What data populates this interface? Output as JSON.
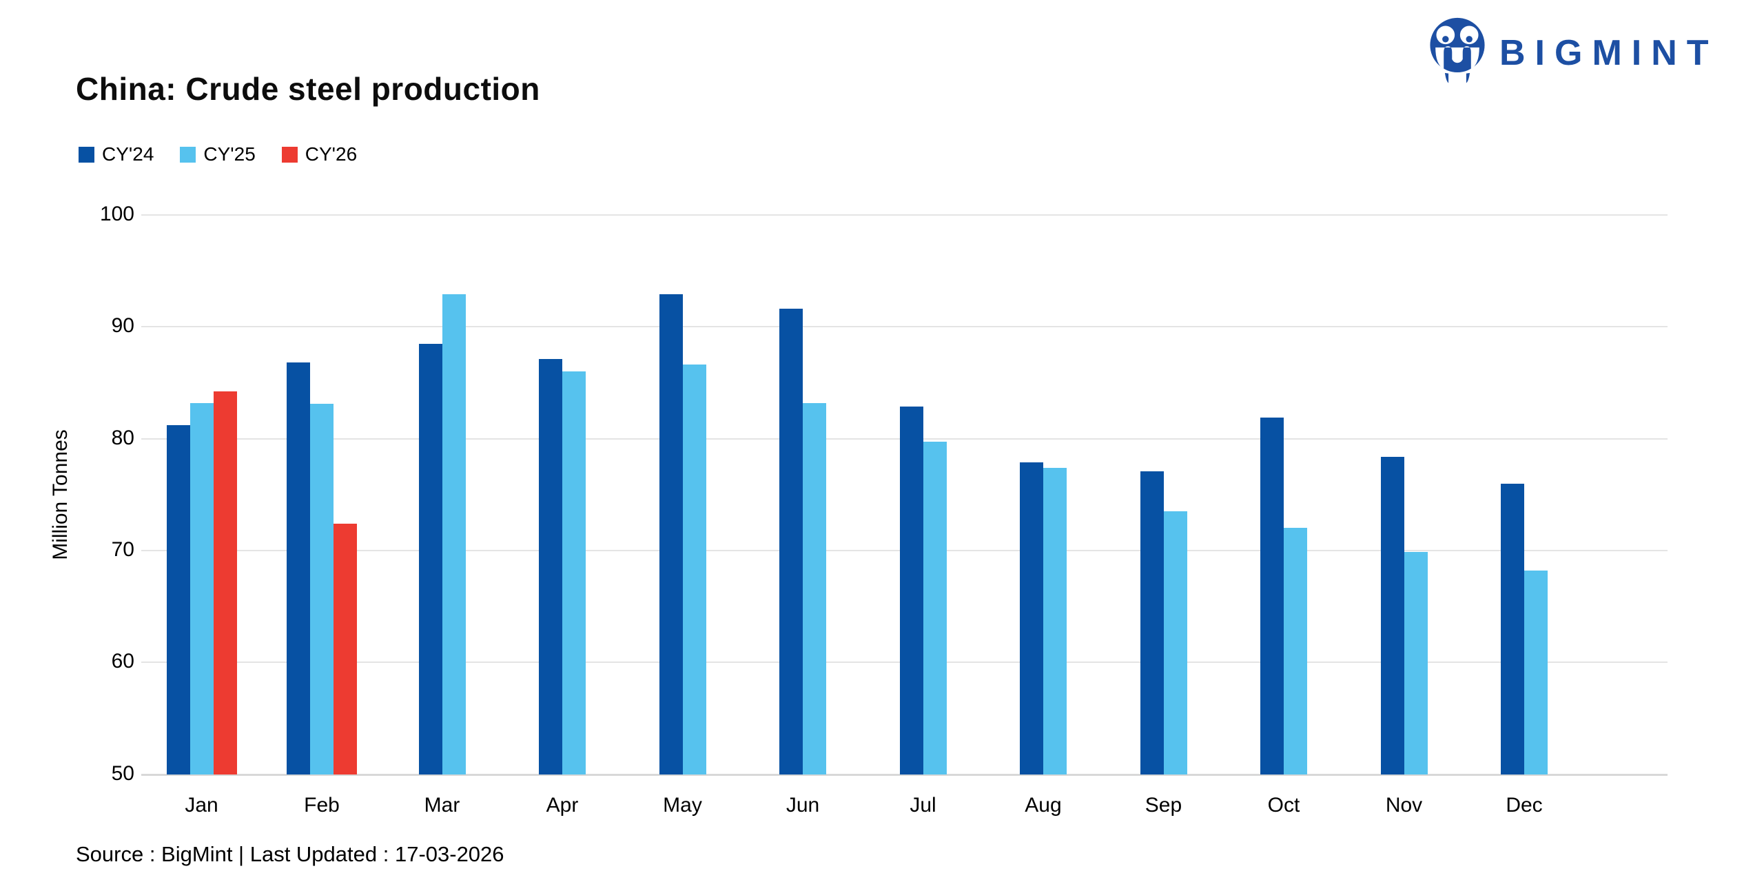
{
  "header": {
    "title": "China: Crude steel production",
    "brand": "BIGMINT",
    "brand_color": "#1d4fa3"
  },
  "y_axis": {
    "title": "Million Tonnes"
  },
  "footer": {
    "text": "Source : BigMint | Last Updated : 17-03-2026"
  },
  "colors": {
    "cy24": "#0751a3",
    "cy25": "#56c2ee",
    "cy26": "#ed3b31",
    "gridline": "#e4e4e4"
  },
  "chart_data": {
    "type": "bar",
    "title": "China: Crude steel production",
    "xlabel": "",
    "ylabel": "Million Tonnes",
    "ylim": [
      50,
      100
    ],
    "yticks": [
      50,
      60,
      70,
      80,
      90,
      100
    ],
    "grid": true,
    "legend_position": "top-left",
    "categories": [
      "Jan",
      "Feb",
      "Mar",
      "Apr",
      "May",
      "Jun",
      "Jul",
      "Aug",
      "Sep",
      "Oct",
      "Nov",
      "Dec"
    ],
    "series": [
      {
        "name": "CY'24",
        "color": "#0751a3",
        "values": [
          81.2,
          86.8,
          88.5,
          87.1,
          92.9,
          91.6,
          82.9,
          77.9,
          77.1,
          81.9,
          78.4,
          76.0
        ]
      },
      {
        "name": "CY'25",
        "color": "#56c2ee",
        "values": [
          83.2,
          83.1,
          92.9,
          86.0,
          86.6,
          83.2,
          79.7,
          77.4,
          73.5,
          72.0,
          69.9,
          68.2
        ]
      },
      {
        "name": "CY'26",
        "color": "#ed3b31",
        "values": [
          84.2,
          72.4,
          null,
          null,
          null,
          null,
          null,
          null,
          null,
          null,
          null,
          null
        ]
      }
    ]
  }
}
